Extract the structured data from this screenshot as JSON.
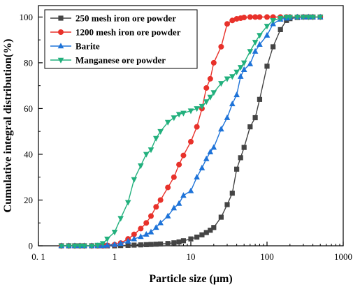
{
  "chart_data": {
    "type": "scatter",
    "xlabel": "Particle size (µm)",
    "ylabel": "Cumulative integral distribution(%)",
    "xscale": "log",
    "xlim": [
      0.1,
      1000
    ],
    "ylim": [
      0,
      105
    ],
    "xticks": [
      0.1,
      1,
      10,
      100,
      1000
    ],
    "xtick_labels": [
      "0. 1",
      "1",
      "10",
      "100",
      "1000"
    ],
    "yticks": [
      0,
      20,
      40,
      60,
      80,
      100
    ],
    "ytick_labels": [
      "0",
      "20",
      "40",
      "60",
      "80",
      "100"
    ],
    "grid": false,
    "legend_position": "top-left",
    "series": [
      {
        "name": "250 mesh iron ore powder",
        "color": "#444444",
        "marker": "square",
        "x": [
          0.2,
          0.25,
          0.3,
          0.35,
          0.4,
          0.5,
          0.6,
          0.7,
          0.8,
          1,
          1.2,
          1.5,
          1.8,
          2.2,
          2.6,
          3,
          3.5,
          4,
          5,
          6,
          7,
          8,
          10,
          12,
          14,
          16,
          18,
          20,
          25,
          30,
          35,
          40,
          45,
          50,
          60,
          70,
          80,
          100,
          120,
          150,
          180,
          200,
          250,
          300,
          350,
          400,
          500
        ],
        "y": [
          0,
          0,
          0,
          0,
          0,
          0,
          0,
          0,
          0,
          0,
          0.1,
          0.2,
          0.3,
          0.4,
          0.5,
          0.6,
          0.7,
          0.8,
          1.0,
          1.3,
          1.7,
          2.2,
          3.0,
          3.8,
          4.8,
          5.8,
          6.8,
          8.0,
          12.5,
          18.0,
          23.0,
          33.5,
          38.5,
          43.0,
          52.0,
          56.0,
          64.0,
          78.5,
          87.0,
          94.5,
          98.5,
          99.3,
          99.8,
          100,
          100,
          100,
          100
        ]
      },
      {
        "name": "1200 mesh iron ore powder",
        "color": "#e8312a",
        "marker": "circle",
        "x": [
          0.2,
          0.25,
          0.3,
          0.35,
          0.4,
          0.5,
          0.6,
          0.7,
          0.8,
          1,
          1.2,
          1.5,
          1.8,
          2.2,
          2.6,
          3,
          3.5,
          4,
          5,
          6,
          7,
          8,
          10,
          12,
          14,
          16,
          18,
          20,
          25,
          30,
          35,
          40,
          45,
          50,
          60,
          70,
          80,
          100,
          120,
          150,
          180,
          200,
          250,
          300,
          350,
          400,
          500
        ],
        "y": [
          0,
          0,
          0,
          0,
          0,
          0,
          0,
          0,
          0.2,
          0.5,
          1.2,
          3,
          5,
          7.5,
          10,
          13,
          17,
          20,
          25.5,
          30,
          35.5,
          39.5,
          45.5,
          52,
          60,
          69,
          73,
          80,
          87,
          97,
          98.5,
          99.2,
          99.5,
          99.8,
          100,
          100,
          100,
          100,
          100,
          100,
          100,
          100,
          100,
          100,
          100,
          100,
          100
        ]
      },
      {
        "name": "Barite",
        "color": "#1e73d8",
        "marker": "triangle-up",
        "x": [
          0.2,
          0.25,
          0.3,
          0.35,
          0.4,
          0.5,
          0.6,
          0.7,
          0.8,
          1,
          1.2,
          1.5,
          1.8,
          2.2,
          2.6,
          3,
          3.5,
          4,
          5,
          6,
          7,
          8,
          10,
          12,
          14,
          16,
          18,
          20,
          25,
          30,
          35,
          40,
          45,
          50,
          60,
          70,
          80,
          100,
          120,
          150,
          180,
          200,
          250,
          300,
          350,
          400,
          500
        ],
        "y": [
          0,
          0,
          0,
          0,
          0,
          0,
          0,
          0,
          0.2,
          0.5,
          1,
          2,
          3,
          4,
          5,
          6,
          8,
          10,
          13,
          16.5,
          18.5,
          22,
          24,
          30,
          34,
          38,
          41,
          43,
          51,
          56,
          62,
          66,
          74,
          77,
          79.5,
          85,
          88,
          92,
          97,
          99,
          99.5,
          99.8,
          100,
          100,
          100,
          100,
          100
        ]
      },
      {
        "name": "Manganese ore powder",
        "color": "#22b07d",
        "marker": "triangle-down",
        "x": [
          0.2,
          0.25,
          0.3,
          0.35,
          0.4,
          0.5,
          0.6,
          0.7,
          0.8,
          1,
          1.2,
          1.5,
          1.8,
          2.2,
          2.6,
          3,
          3.5,
          4,
          5,
          6,
          7,
          8,
          10,
          12,
          14,
          16,
          18,
          20,
          25,
          30,
          35,
          40,
          45,
          50,
          60,
          70,
          80,
          100,
          120,
          150,
          180,
          200,
          250,
          300,
          350,
          400,
          500
        ],
        "y": [
          0,
          0,
          0,
          0,
          0,
          0,
          0.3,
          1,
          3,
          6,
          12,
          19,
          29,
          35,
          40,
          42,
          47,
          50,
          54,
          56,
          57.5,
          58,
          59,
          60,
          61,
          63,
          65,
          67,
          71,
          73,
          74,
          76,
          78,
          80,
          85,
          89,
          92,
          96,
          98.5,
          99.5,
          100,
          100,
          100,
          100,
          100,
          100,
          100
        ]
      }
    ]
  }
}
